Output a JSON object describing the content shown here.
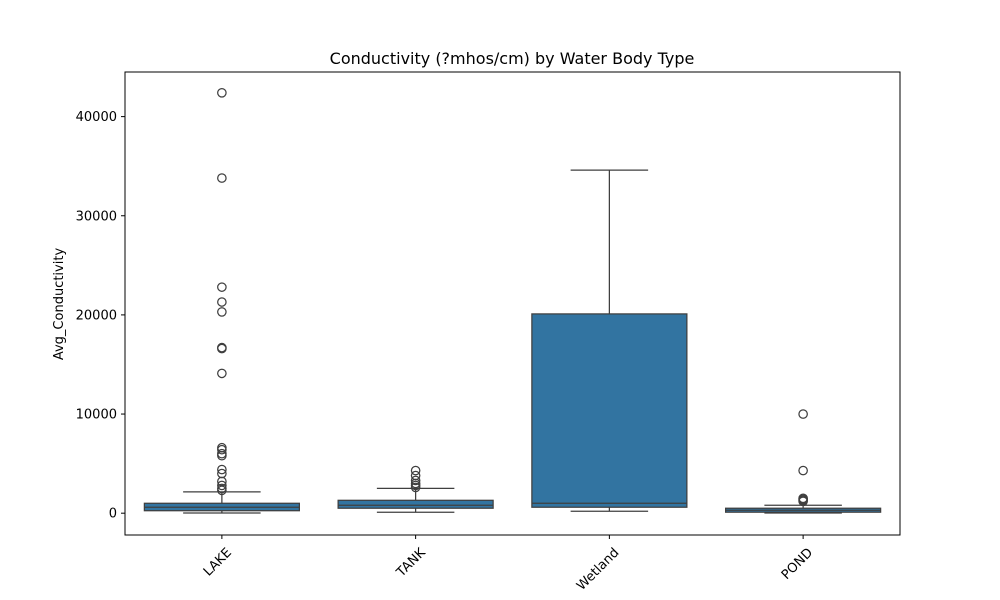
{
  "chart_data": {
    "type": "box",
    "title": "Conductivity (?mhos/cm) by Water Body Type",
    "xlabel": "",
    "ylabel": "Avg_Conductivity",
    "ylim": [
      -2200,
      44500
    ],
    "yticks": [
      0,
      10000,
      20000,
      30000,
      40000
    ],
    "ytick_labels": [
      "0",
      "10000",
      "20000",
      "30000",
      "40000"
    ],
    "categories": [
      "LAKE",
      "TANK",
      "Wetland",
      "POND"
    ],
    "box_color": "#3274a1",
    "edge_color": "#3f3f3f",
    "boxes": [
      {
        "category": "LAKE",
        "whisker_low": 20,
        "q1": 250,
        "median": 600,
        "q3": 1000,
        "whisker_high": 2150,
        "outliers": [
          42400,
          33800,
          22800,
          21300,
          20300,
          16700,
          16600,
          14100,
          6600,
          6400,
          6000,
          5800,
          4400,
          4000,
          3200,
          2800,
          2500,
          2300
        ]
      },
      {
        "category": "TANK",
        "whisker_low": 100,
        "q1": 500,
        "median": 800,
        "q3": 1300,
        "whisker_high": 2500,
        "outliers": [
          4300,
          3800,
          3300,
          3000,
          2800,
          2600
        ]
      },
      {
        "category": "Wetland",
        "whisker_low": 200,
        "q1": 600,
        "median": 1000,
        "q3": 20100,
        "whisker_high": 34600,
        "outliers": []
      },
      {
        "category": "POND",
        "whisker_low": 20,
        "q1": 100,
        "median": 300,
        "q3": 500,
        "whisker_high": 800,
        "outliers": [
          10000,
          4300,
          1500,
          1400,
          1300,
          1200
        ]
      }
    ]
  }
}
